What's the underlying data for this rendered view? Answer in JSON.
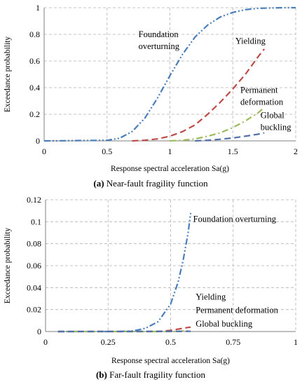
{
  "colors": {
    "grid": "#b3b3b3",
    "axis": "#7f7f7f",
    "foundation": "#4a7ebb",
    "yielding": "#be4b48",
    "permanent": "#9bbb59",
    "buckling": "#4f6fa8"
  },
  "chart_data": [
    {
      "type": "line",
      "caption_tag": "(a)",
      "caption_text": " Near-fault fragility function",
      "xlabel": "Response spectral acceleration Sa(g)",
      "ylabel": "Exceedance probability",
      "xlim": [
        0,
        2
      ],
      "ylim": [
        0,
        1
      ],
      "xticks": [
        0,
        0.5,
        1,
        1.5,
        2
      ],
      "xtick_labels": [
        "0",
        "0.5",
        "1",
        "1.5",
        "2"
      ],
      "yticks": [
        0,
        0.2,
        0.4,
        0.6,
        0.8,
        1
      ],
      "ytick_labels": [
        "0",
        "0.2",
        "0.4",
        "0.6",
        "0.8",
        "1"
      ],
      "grid": true,
      "series": [
        {
          "name": "Foundation overturning",
          "color_key": "foundation",
          "dash": "dashdotdot",
          "x": [
            0,
            0.5,
            0.6,
            0.7,
            0.8,
            0.9,
            1.0,
            1.1,
            1.2,
            1.3,
            1.4,
            1.5,
            1.6,
            1.7,
            1.8,
            1.9,
            2.0
          ],
          "y": [
            0,
            0.004,
            0.02,
            0.07,
            0.17,
            0.32,
            0.49,
            0.65,
            0.78,
            0.87,
            0.93,
            0.965,
            0.985,
            0.995,
            0.998,
            1.0,
            1.0
          ]
        },
        {
          "name": "Yielding",
          "color_key": "yielding",
          "dash": "dash",
          "x": [
            0.7,
            0.8,
            0.9,
            1.0,
            1.1,
            1.2,
            1.3,
            1.4,
            1.5,
            1.6,
            1.7,
            1.75
          ],
          "y": [
            0,
            0.005,
            0.015,
            0.035,
            0.07,
            0.12,
            0.2,
            0.29,
            0.39,
            0.5,
            0.63,
            0.69
          ]
        },
        {
          "name": "Permanent deformation",
          "color_key": "permanent",
          "dash": "dashdot",
          "x": [
            1.0,
            1.1,
            1.2,
            1.3,
            1.4,
            1.5,
            1.6,
            1.7,
            1.75
          ],
          "y": [
            0,
            0.005,
            0.015,
            0.035,
            0.06,
            0.1,
            0.15,
            0.21,
            0.25
          ]
        },
        {
          "name": "Global buckling",
          "color_key": "buckling",
          "dash": "dash",
          "x": [
            1.2,
            1.3,
            1.4,
            1.5,
            1.6,
            1.7,
            1.75
          ],
          "y": [
            0,
            0.005,
            0.012,
            0.022,
            0.035,
            0.05,
            0.06
          ]
        }
      ],
      "annotations": [
        {
          "lines": [
            "Foundation",
            "overturning"
          ],
          "x": 0.75,
          "y": 0.78,
          "anchor": "start"
        },
        {
          "lines": [
            "Yielding"
          ],
          "x": 1.52,
          "y": 0.73,
          "anchor": "start"
        },
        {
          "lines": [
            "Permanent",
            "deformation"
          ],
          "x": 1.56,
          "y": 0.36,
          "anchor": "start"
        },
        {
          "lines": [
            "Global",
            "buckling"
          ],
          "x": 1.72,
          "y": 0.17,
          "anchor": "start"
        }
      ]
    },
    {
      "type": "line",
      "caption_tag": "(b)",
      "caption_text": " Far-fault fragility function",
      "xlabel": "Response spectral acceleration Sa(g)",
      "ylabel": "Exceedance probability",
      "xlim": [
        0,
        1
      ],
      "ylim": [
        0,
        0.12
      ],
      "xticks": [
        0,
        0.25,
        0.5,
        0.75,
        1
      ],
      "xtick_labels": [
        "0",
        "0.25",
        "0.5",
        "0.75",
        "1"
      ],
      "yticks": [
        0,
        0.02,
        0.04,
        0.06,
        0.08,
        0.1,
        0.12
      ],
      "ytick_labels": [
        "0",
        "0.02",
        "0.04",
        "0.06",
        "0.08",
        "0.1",
        "0.12"
      ],
      "grid": true,
      "series": [
        {
          "name": "Foundation overturning",
          "color_key": "foundation",
          "dash": "dashdotdot",
          "x": [
            0.05,
            0.3,
            0.35,
            0.4,
            0.45,
            0.5,
            0.53,
            0.55,
            0.57,
            0.58
          ],
          "y": [
            0,
            0,
            0.0005,
            0.003,
            0.009,
            0.025,
            0.045,
            0.065,
            0.09,
            0.108
          ]
        },
        {
          "name": "Yielding",
          "color_key": "yielding",
          "dash": "dash",
          "x": [
            0.05,
            0.45,
            0.5,
            0.55,
            0.58
          ],
          "y": [
            0,
            0,
            0.001,
            0.003,
            0.004
          ]
        },
        {
          "name": "Permanent deformation",
          "color_key": "permanent",
          "dash": "dashdot",
          "x": [
            0.05,
            0.5,
            0.58
          ],
          "y": [
            0,
            0,
            0.0006
          ]
        },
        {
          "name": "Global buckling",
          "color_key": "buckling",
          "dash": "dash",
          "x": [
            0.05,
            0.58
          ],
          "y": [
            0,
            0.0002
          ]
        }
      ],
      "annotations": [
        {
          "lines": [
            "Foundation  overturning"
          ],
          "x": 0.59,
          "y": 0.1,
          "anchor": "start"
        },
        {
          "lines": [
            "Yielding"
          ],
          "x": 0.6,
          "y": 0.029,
          "anchor": "start"
        },
        {
          "lines": [
            "Permanent deformation"
          ],
          "x": 0.6,
          "y": 0.017,
          "anchor": "start"
        },
        {
          "lines": [
            "Global buckling"
          ],
          "x": 0.6,
          "y": 0.0045,
          "anchor": "start"
        }
      ]
    }
  ]
}
